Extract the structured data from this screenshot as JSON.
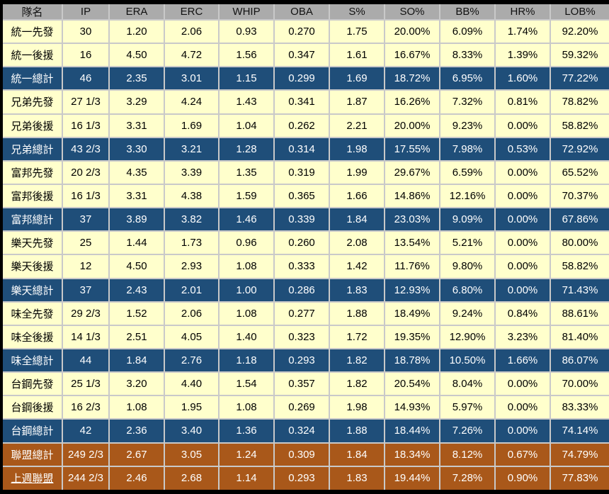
{
  "chart_data": {
    "type": "table",
    "columns": [
      "隊名",
      "IP",
      "ERA",
      "ERC",
      "WHIP",
      "OBA",
      "S%",
      "SO%",
      "BB%",
      "HR%",
      "LOB%"
    ],
    "rows": [
      {
        "style": "normal",
        "cells": [
          "統一先發",
          "30",
          "1.20",
          "2.06",
          "0.93",
          "0.270",
          "1.75",
          "20.00%",
          "6.09%",
          "1.74%",
          "92.20%"
        ]
      },
      {
        "style": "normal",
        "cells": [
          "統一後援",
          "16",
          "4.50",
          "4.72",
          "1.56",
          "0.347",
          "1.61",
          "16.67%",
          "8.33%",
          "1.39%",
          "59.32%"
        ]
      },
      {
        "style": "total",
        "cells": [
          "統一總計",
          "46",
          "2.35",
          "3.01",
          "1.15",
          "0.299",
          "1.69",
          "18.72%",
          "6.95%",
          "1.60%",
          "77.22%"
        ]
      },
      {
        "style": "normal",
        "cells": [
          "兄弟先發",
          "27 1/3",
          "3.29",
          "4.24",
          "1.43",
          "0.341",
          "1.87",
          "16.26%",
          "7.32%",
          "0.81%",
          "78.82%"
        ]
      },
      {
        "style": "normal",
        "cells": [
          "兄弟後援",
          "16 1/3",
          "3.31",
          "1.69",
          "1.04",
          "0.262",
          "2.21",
          "20.00%",
          "9.23%",
          "0.00%",
          "58.82%"
        ]
      },
      {
        "style": "total",
        "cells": [
          "兄弟總計",
          "43 2/3",
          "3.30",
          "3.21",
          "1.28",
          "0.314",
          "1.98",
          "17.55%",
          "7.98%",
          "0.53%",
          "72.92%"
        ]
      },
      {
        "style": "normal",
        "cells": [
          "富邦先發",
          "20 2/3",
          "4.35",
          "3.39",
          "1.35",
          "0.319",
          "1.99",
          "29.67%",
          "6.59%",
          "0.00%",
          "65.52%"
        ]
      },
      {
        "style": "normal",
        "cells": [
          "富邦後援",
          "16 1/3",
          "3.31",
          "4.38",
          "1.59",
          "0.365",
          "1.66",
          "14.86%",
          "12.16%",
          "0.00%",
          "70.37%"
        ]
      },
      {
        "style": "total",
        "cells": [
          "富邦總計",
          "37",
          "3.89",
          "3.82",
          "1.46",
          "0.339",
          "1.84",
          "23.03%",
          "9.09%",
          "0.00%",
          "67.86%"
        ]
      },
      {
        "style": "normal",
        "cells": [
          "樂天先發",
          "25",
          "1.44",
          "1.73",
          "0.96",
          "0.260",
          "2.08",
          "13.54%",
          "5.21%",
          "0.00%",
          "80.00%"
        ]
      },
      {
        "style": "normal",
        "cells": [
          "樂天後援",
          "12",
          "4.50",
          "2.93",
          "1.08",
          "0.333",
          "1.42",
          "11.76%",
          "9.80%",
          "0.00%",
          "58.82%"
        ]
      },
      {
        "style": "total",
        "cells": [
          "樂天總計",
          "37",
          "2.43",
          "2.01",
          "1.00",
          "0.286",
          "1.83",
          "12.93%",
          "6.80%",
          "0.00%",
          "71.43%"
        ]
      },
      {
        "style": "normal",
        "cells": [
          "味全先發",
          "29 2/3",
          "1.52",
          "2.06",
          "1.08",
          "0.277",
          "1.88",
          "18.49%",
          "9.24%",
          "0.84%",
          "88.61%"
        ]
      },
      {
        "style": "normal",
        "cells": [
          "味全後援",
          "14 1/3",
          "2.51",
          "4.05",
          "1.40",
          "0.323",
          "1.72",
          "19.35%",
          "12.90%",
          "3.23%",
          "81.40%"
        ]
      },
      {
        "style": "total",
        "cells": [
          "味全總計",
          "44",
          "1.84",
          "2.76",
          "1.18",
          "0.293",
          "1.82",
          "18.78%",
          "10.50%",
          "1.66%",
          "86.07%"
        ]
      },
      {
        "style": "normal",
        "cells": [
          "台鋼先發",
          "25 1/3",
          "3.20",
          "4.40",
          "1.54",
          "0.357",
          "1.82",
          "20.54%",
          "8.04%",
          "0.00%",
          "70.00%"
        ]
      },
      {
        "style": "normal",
        "cells": [
          "台鋼後援",
          "16 2/3",
          "1.08",
          "1.95",
          "1.08",
          "0.269",
          "1.98",
          "14.93%",
          "5.97%",
          "0.00%",
          "83.33%"
        ]
      },
      {
        "style": "total",
        "cells": [
          "台鋼總計",
          "42",
          "2.36",
          "3.40",
          "1.36",
          "0.324",
          "1.88",
          "18.44%",
          "7.26%",
          "0.00%",
          "74.14%"
        ]
      },
      {
        "style": "league",
        "cells": [
          "聯盟總計",
          "249 2/3",
          "2.67",
          "3.05",
          "1.24",
          "0.309",
          "1.84",
          "18.34%",
          "8.12%",
          "0.67%",
          "74.79%"
        ]
      },
      {
        "style": "league",
        "underline_label": true,
        "cells": [
          "上週聯盟",
          "244 2/3",
          "2.46",
          "2.68",
          "1.14",
          "0.293",
          "1.83",
          "19.44%",
          "7.28%",
          "0.90%",
          "77.83%"
        ]
      }
    ]
  },
  "colors": {
    "header_bg": "#ABABAB",
    "header_text": "#111111",
    "row_bg": "#FFFFCC",
    "row_text": "#000000",
    "total_row_bg": "#1F4E79",
    "total_row_text": "#FFFFFF",
    "league_row_bg": "#A9581A",
    "league_row_text": "#FFFFFF",
    "gridline": "#C9C9C9",
    "outer_border": "#000000"
  }
}
